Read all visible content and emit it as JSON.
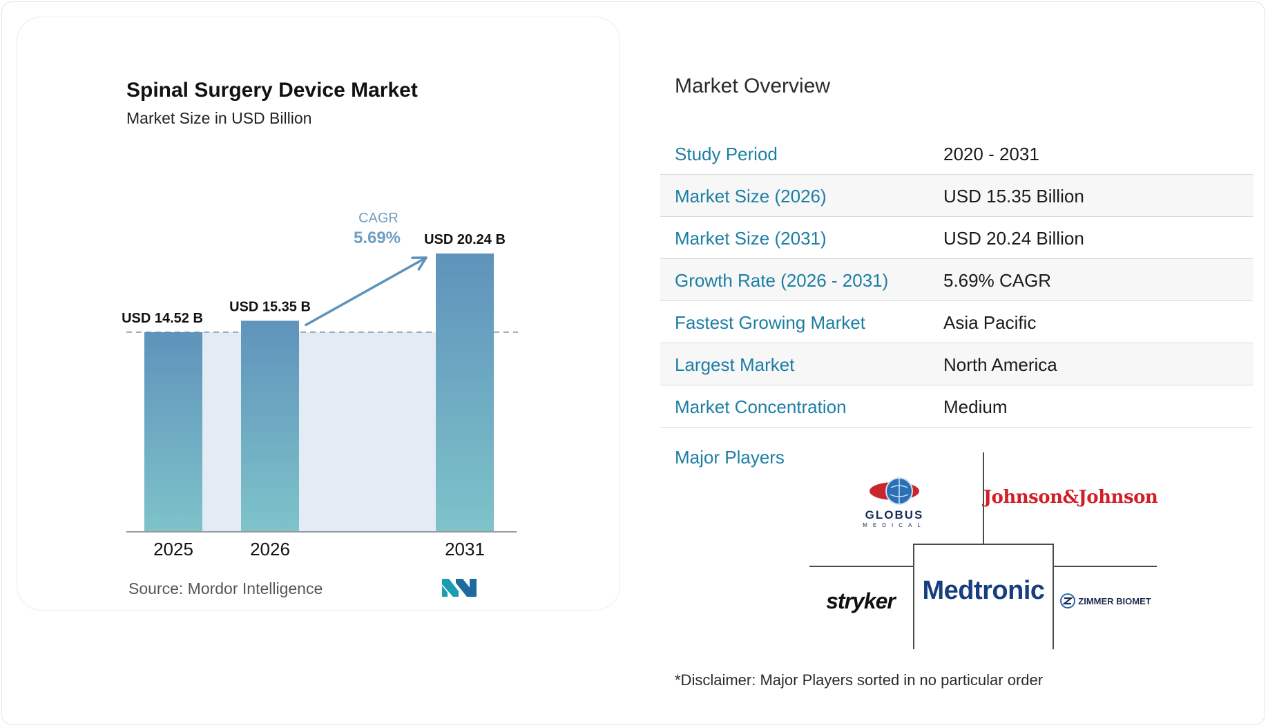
{
  "chart_data": {
    "type": "bar",
    "title": "Spinal Surgery Device Market",
    "subtitle": "Market Size in USD Billion",
    "categories": [
      "2025",
      "2026",
      "2031"
    ],
    "values": [
      14.52,
      15.35,
      20.24
    ],
    "value_labels": [
      "USD 14.52 B",
      "USD 15.35 B",
      "USD 20.24 B"
    ],
    "ylim": [
      0,
      22
    ],
    "cagr": {
      "label": "CAGR",
      "value": "5.69%"
    },
    "source": "Source:  Mordor Intelligence",
    "colors": {
      "bar_top": "#5f93bb",
      "bar_bottom": "#7ec3ca",
      "shade": "#e3ecf4",
      "arrow": "#5b93bc",
      "cagr_text": "#6d9fc2"
    }
  },
  "overview": {
    "title": "Market Overview",
    "rows": [
      {
        "label": "Study Period",
        "value": "2020 - 2031"
      },
      {
        "label": "Market Size (2026)",
        "value": "USD 15.35 Billion"
      },
      {
        "label": "Market Size (2031)",
        "value": "USD 20.24 Billion"
      },
      {
        "label": "Growth Rate (2026 - 2031)",
        "value": "5.69% CAGR"
      },
      {
        "label": "Fastest Growing Market",
        "value": "Asia Pacific"
      },
      {
        "label": "Largest Market",
        "value": "North America"
      },
      {
        "label": "Market Concentration",
        "value": "Medium"
      }
    ],
    "major_players_label": "Major Players",
    "players": {
      "globus": "GLOBUS",
      "globus_sub": "MEDICAL",
      "jnj": "Johnson&Johnson",
      "stryker": "stryker",
      "medtronic": "Medtronic",
      "zimmer": "ZIMMER BIOMET"
    },
    "disclaimer": "*Disclaimer: Major Players sorted in no particular order"
  }
}
